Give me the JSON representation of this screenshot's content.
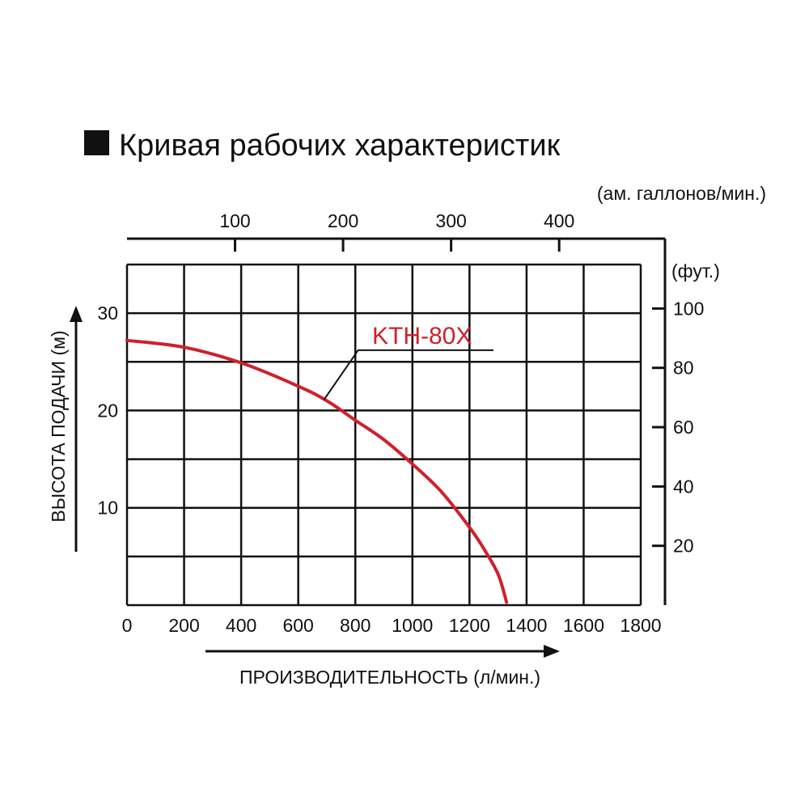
{
  "chart_data": {
    "type": "line",
    "title": "Кривая рабочих характеристик",
    "xlabel": "ПРОИЗВОДИТЕЛЬНОСТЬ (л/мин.)",
    "ylabel": "ВЫСОТА ПОДАЧИ (м)",
    "xlim": [
      0,
      1800
    ],
    "ylim": [
      0,
      35
    ],
    "grid": true,
    "x_ticks": [
      0,
      200,
      400,
      600,
      800,
      1000,
      1200,
      1400,
      1600,
      1800
    ],
    "x_tick_labels": [
      "0",
      "200",
      "400",
      "600",
      "800",
      "1000",
      "1200",
      "1400",
      "1600",
      "1800"
    ],
    "y_ticks": [
      10,
      20,
      30
    ],
    "y_tick_labels": [
      "10",
      "20",
      "30"
    ],
    "top_axis": {
      "label": "(ам. галлонов/мин.)",
      "ticks": [
        100,
        200,
        300,
        400
      ],
      "tick_labels": [
        "100",
        "200",
        "300",
        "400"
      ]
    },
    "right_axis": {
      "label": "(фут.)",
      "ticks": [
        20,
        40,
        60,
        80,
        100
      ],
      "tick_labels": [
        "20",
        "40",
        "60",
        "80",
        "100"
      ]
    },
    "series": [
      {
        "name": "KTH-80X",
        "color": "#d0202a",
        "x": [
          0,
          200,
          400,
          600,
          700,
          800,
          900,
          1000,
          1100,
          1200,
          1250,
          1300,
          1330
        ],
        "y": [
          27.2,
          26.5,
          24.9,
          22.5,
          21.0,
          19.0,
          17.0,
          14.5,
          11.7,
          8.0,
          5.8,
          3.2,
          0.3
        ]
      }
    ]
  }
}
